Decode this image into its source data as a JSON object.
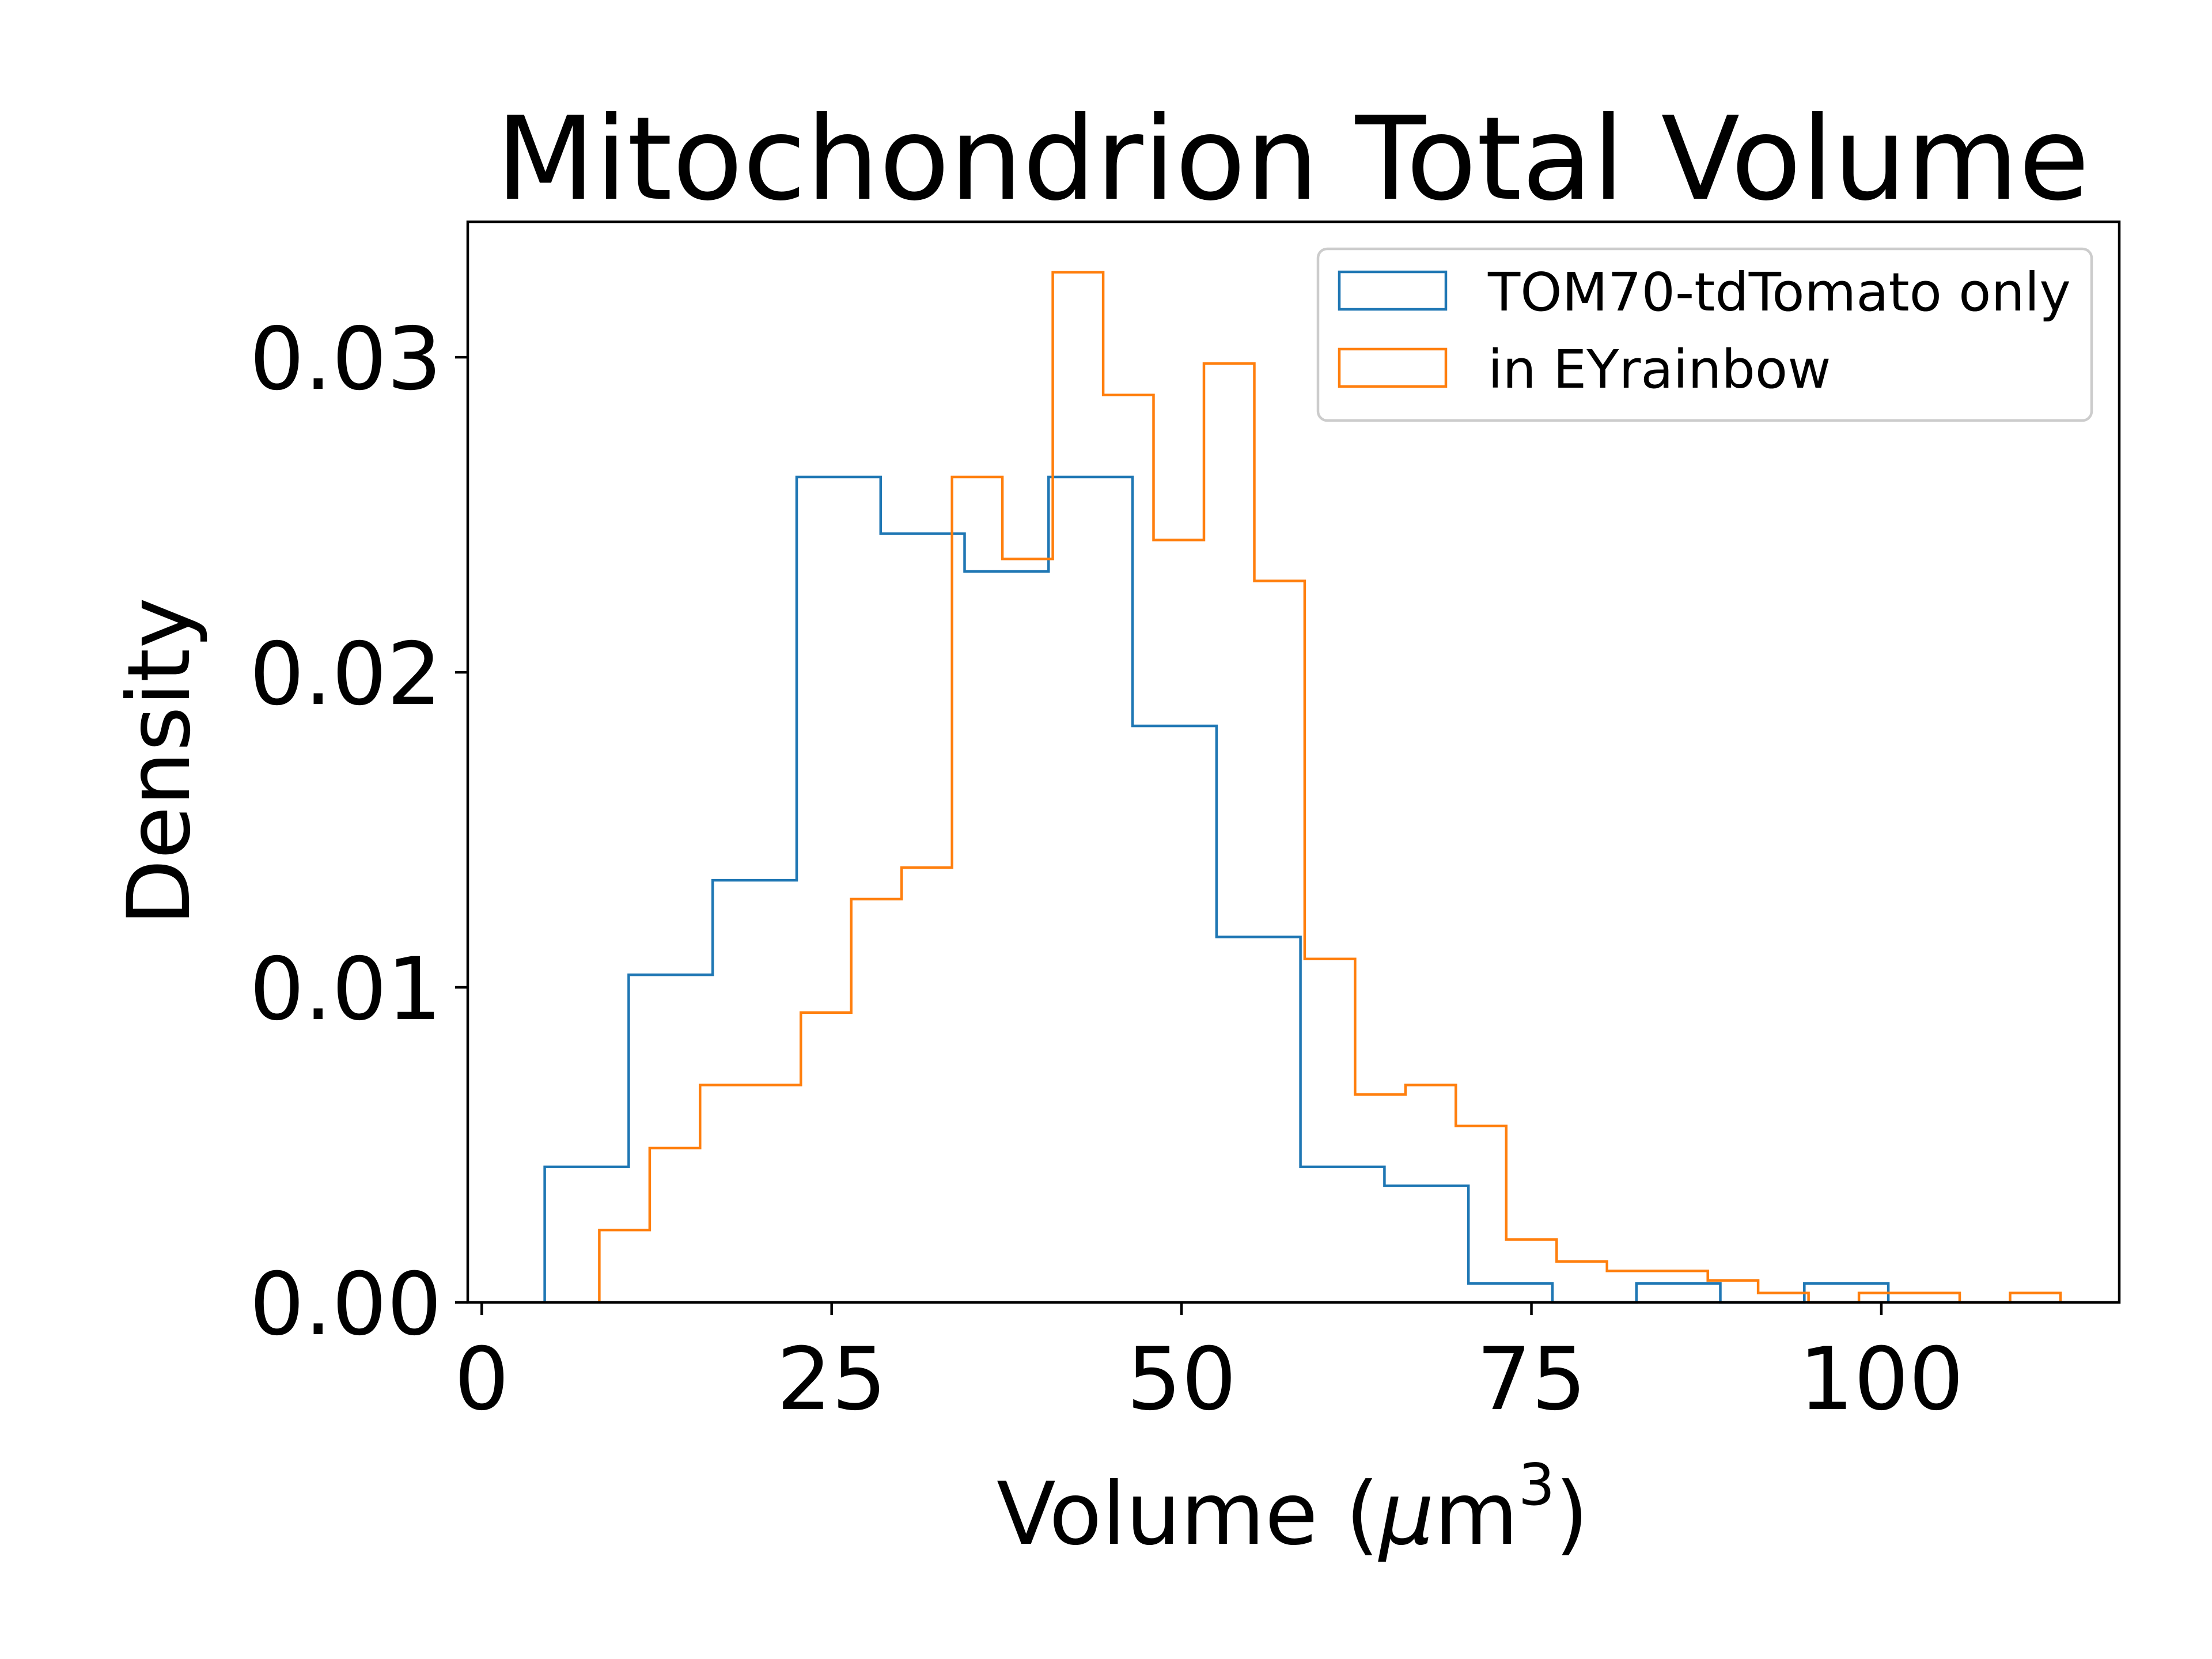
{
  "chart_data": {
    "type": "histogram",
    "title": "Mitochondrion Total Volume",
    "xlabel_main": "Volume (",
    "xlabel_mu": "μ",
    "xlabel_unit": "m",
    "xlabel_exp": "3",
    "xlabel_close": ")",
    "ylabel": "Density",
    "xlim": [
      -1,
      117
    ],
    "ylim": [
      0,
      0.0343
    ],
    "x_ticks": [
      {
        "value": 0,
        "label": "0"
      },
      {
        "value": 25,
        "label": "25"
      },
      {
        "value": 50,
        "label": "50"
      },
      {
        "value": 75,
        "label": "75"
      },
      {
        "value": 100,
        "label": "100"
      }
    ],
    "y_ticks": [
      {
        "value": 0,
        "label": "0.00"
      },
      {
        "value": 0.01,
        "label": "0.01"
      },
      {
        "value": 0.02,
        "label": "0.02"
      },
      {
        "value": 0.03,
        "label": "0.03"
      }
    ],
    "grid": false,
    "legend_position": "top-right",
    "series": [
      {
        "name": "TOM70-tdTomato only",
        "color": "#1f77b4",
        "bin_edges": [
          4.5,
          10.5,
          16.5,
          22.5,
          28.5,
          34.5,
          40.5,
          46.5,
          52.5,
          58.5,
          64.5,
          70.5,
          76.5,
          82.5,
          88.5,
          94.5,
          100.5
        ],
        "densities": [
          0.0043,
          0.0104,
          0.0134,
          0.0262,
          0.0244,
          0.0232,
          0.0262,
          0.0183,
          0.0116,
          0.0043,
          0.0037,
          0.0006,
          0.0,
          0.0006,
          0.0,
          0.0006
        ]
      },
      {
        "name": "in EYrainbow",
        "color": "#ff7f0e",
        "bin_edges": [
          8.4,
          12.0,
          15.6,
          19.2,
          22.8,
          26.4,
          30.0,
          33.6,
          37.2,
          40.8,
          44.4,
          48.0,
          51.6,
          55.2,
          58.8,
          62.4,
          66.0,
          69.6,
          73.2,
          76.8,
          80.4,
          84.0,
          87.6,
          91.2,
          94.8,
          98.4,
          102.0,
          105.6,
          109.2,
          112.8
        ],
        "densities": [
          0.0023,
          0.0049,
          0.0069,
          0.0069,
          0.0092,
          0.0128,
          0.0138,
          0.0262,
          0.0236,
          0.0327,
          0.0288,
          0.0242,
          0.0298,
          0.0229,
          0.0109,
          0.0066,
          0.0069,
          0.0056,
          0.002,
          0.0013,
          0.001,
          0.001,
          0.0007,
          0.0003,
          0.0,
          0.0003,
          0.0003,
          0.0,
          0.0003
        ]
      }
    ]
  }
}
